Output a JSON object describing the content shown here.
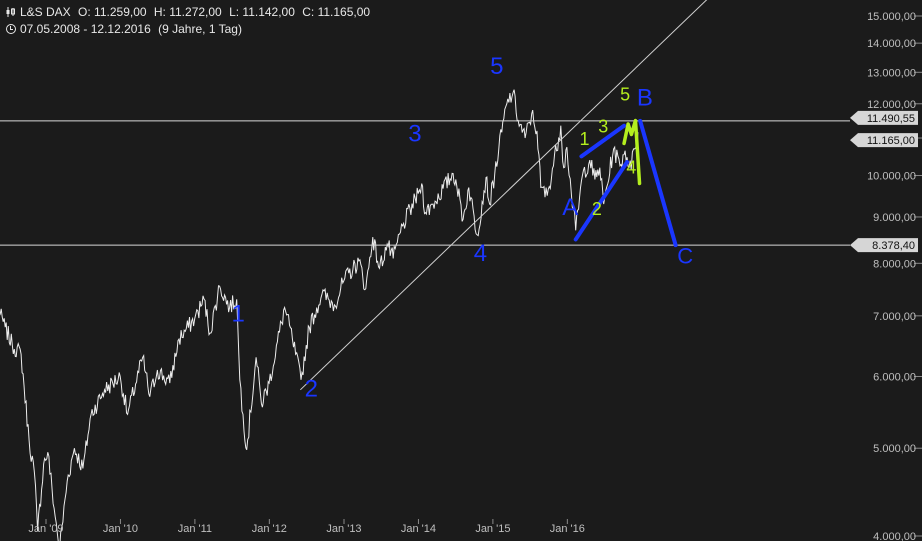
{
  "header": {
    "symbol": "L&S DAX",
    "open": "O: 11.259,00",
    "high": "H: 11.272,00",
    "low": "L: 11.142,00",
    "close": "C: 11.165,00",
    "range": "07.05.2008 - 12.12.2016",
    "interval": "(9 Jahre, 1 Tag)",
    "chart_icon": "candlestick-icon",
    "time_icon": "clock-icon"
  },
  "colors": {
    "background": "#1b1b1b",
    "price": "#ffffff",
    "wave_blue": "#1a36ff",
    "wave_green": "#b4ee1e",
    "axis_text": "#bfbfbf",
    "tag_bg": "#d6d6d6",
    "tag_text": "#111111"
  },
  "chart_data": {
    "type": "line",
    "scale": "log",
    "ylim": [
      4000,
      16000
    ],
    "y_ticks": [
      4000,
      5000,
      6000,
      7000,
      8000,
      9000,
      10000,
      11000,
      12000,
      13000,
      14000,
      15000
    ],
    "y_tick_labels": [
      "4.000,00",
      "5.000,00",
      "6.000,00",
      "7.000,00",
      "8.000,00",
      "9.000,00",
      "10.000,00",
      "11.000,00",
      "12.000,00",
      "13.000,00",
      "14.000,00",
      "15.000,00"
    ],
    "x_range": [
      "2008-05-07",
      "2016-12-12"
    ],
    "x_ticks": [
      "2009-01-01",
      "2010-01-01",
      "2011-01-01",
      "2012-01-01",
      "2013-01-01",
      "2014-01-01",
      "2015-01-01",
      "2016-01-01"
    ],
    "x_tick_labels": [
      "Jan '09",
      "Jan '10",
      "Jan '11",
      "Jan '12",
      "Jan '13",
      "Jan '14",
      "Jan '15",
      "Jan '16"
    ],
    "series": [
      {
        "dates": [
          "2008-05-07",
          "2008-06-15",
          "2008-07-20",
          "2008-09-01",
          "2008-10-10",
          "2008-11-05",
          "2008-11-21",
          "2008-12-20",
          "2009-01-10",
          "2009-02-15",
          "2009-03-09",
          "2009-04-15",
          "2009-05-20",
          "2009-07-01",
          "2009-08-10",
          "2009-10-15",
          "2009-12-31",
          "2010-02-05",
          "2010-04-20",
          "2010-05-25",
          "2010-07-01",
          "2010-08-31",
          "2010-10-15",
          "2010-12-31",
          "2011-02-15",
          "2011-03-16",
          "2011-05-02",
          "2011-06-20",
          "2011-07-25",
          "2011-08-09",
          "2011-08-25",
          "2011-09-12",
          "2011-10-28",
          "2011-11-23",
          "2011-12-31",
          "2012-03-16",
          "2012-04-23",
          "2012-06-04",
          "2012-07-15",
          "2012-09-15",
          "2012-11-15",
          "2012-12-31",
          "2013-03-15",
          "2013-04-18",
          "2013-05-22",
          "2013-06-24",
          "2013-08-01",
          "2013-08-30",
          "2013-10-15",
          "2013-12-31",
          "2014-01-17",
          "2014-02-04",
          "2014-03-14",
          "2014-06-20",
          "2014-07-03",
          "2014-08-08",
          "2014-09-05",
          "2014-10-16",
          "2014-11-28",
          "2014-12-16",
          "2015-01-30",
          "2015-03-10",
          "2015-04-10",
          "2015-05-05",
          "2015-06-08",
          "2015-07-10",
          "2015-08-05",
          "2015-08-24",
          "2015-09-24",
          "2015-11-30",
          "2015-12-14",
          "2015-12-30",
          "2016-01-20",
          "2016-02-11",
          "2016-03-15",
          "2016-04-20",
          "2016-05-15",
          "2016-06-08",
          "2016-06-27",
          "2016-08-15",
          "2016-09-15",
          "2016-10-10",
          "2016-11-09",
          "2016-11-21",
          "2016-12-07",
          "2016-12-12"
        ],
        "values": [
          7150,
          6800,
          6500,
          6350,
          5100,
          4700,
          4050,
          4800,
          4950,
          4200,
          3880,
          4600,
          5000,
          4750,
          5450,
          5800,
          6000,
          5450,
          6300,
          5700,
          6100,
          5900,
          6600,
          6950,
          7300,
          6700,
          7550,
          7150,
          7300,
          5950,
          5450,
          4980,
          6300,
          5600,
          5900,
          7150,
          6600,
          5950,
          6800,
          7400,
          7200,
          7650,
          8050,
          7500,
          8550,
          7900,
          8400,
          8100,
          8800,
          9550,
          9800,
          9100,
          9300,
          10050,
          9900,
          8950,
          9700,
          8600,
          9950,
          9300,
          10700,
          12000,
          12350,
          11500,
          11000,
          11700,
          11200,
          9700,
          9500,
          11350,
          10200,
          10750,
          9600,
          8700,
          10000,
          10400,
          9900,
          10200,
          9300,
          10700,
          10250,
          10650,
          10150,
          10700,
          11000,
          11165
        ]
      }
    ],
    "price_tags": [
      "11.490,55",
      "11.165,00",
      "8.378,40"
    ],
    "horizontal_lines": [
      11490.55,
      8378.4
    ],
    "trendline": {
      "from": [
        "2012-06-01",
        5800
      ],
      "to": [
        "2017-12-31",
        16000
      ]
    },
    "annotations": {
      "blue_labels": [
        "1",
        "2",
        "3",
        "4",
        "5",
        "A",
        "B",
        "C"
      ],
      "green_labels": [
        "1",
        "2",
        "3",
        "4",
        "5"
      ]
    },
    "projection": {
      "A": [
        "2016-02-11",
        8500
      ],
      "top": [
        "2016-10-05",
        11350
      ],
      "B": [
        "2016-12-23",
        11490
      ],
      "C": [
        "2017-06-15",
        8378
      ]
    }
  }
}
